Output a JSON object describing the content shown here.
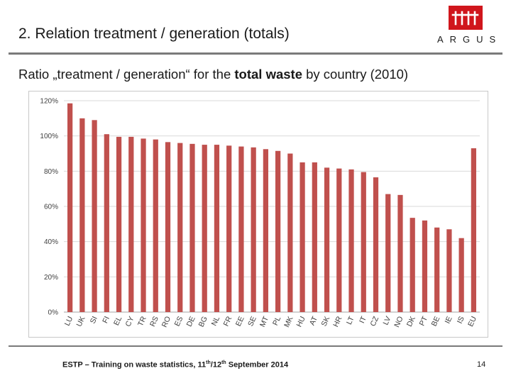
{
  "header": {
    "title": "2. Relation treatment / generation (totals)",
    "logo_text": "ARGUS",
    "brand_color": "#d0161c"
  },
  "subtitle": {
    "prefix": "Ratio „treatment / generation“ for the ",
    "emphasis": "total waste",
    "suffix": " by country (2010)"
  },
  "chart_data": {
    "type": "bar",
    "title": "",
    "xlabel": "",
    "ylabel": "",
    "ylim": [
      0,
      120
    ],
    "yticks": [
      0,
      20,
      40,
      60,
      80,
      100,
      120
    ],
    "ytick_labels": [
      "0%",
      "20%",
      "40%",
      "60%",
      "80%",
      "100%",
      "120%"
    ],
    "bar_color": "#c0504d",
    "grid": true,
    "categories": [
      "LU",
      "UK",
      "SI",
      "FI",
      "EL",
      "CY",
      "TR",
      "RS",
      "RO",
      "ES",
      "DE",
      "BG",
      "NL",
      "FR",
      "EE",
      "SE",
      "MT",
      "PL",
      "MK",
      "HU",
      "AT",
      "SK",
      "HR",
      "LT",
      "IT",
      "CZ",
      "LV",
      "NO",
      "DK",
      "PT",
      "BE",
      "IE",
      "IS",
      "EU"
    ],
    "values": [
      118.5,
      110,
      109,
      101,
      99.5,
      99.5,
      98.5,
      98,
      96.5,
      96,
      95.5,
      95,
      95,
      94.5,
      94,
      93.5,
      92.5,
      91.5,
      90,
      85,
      85,
      82,
      81.5,
      81,
      79.5,
      76.5,
      67,
      66.5,
      53.5,
      52,
      48,
      47,
      42,
      93
    ]
  },
  "footer": {
    "text_main": "ESTP – Training on waste statistics, 11",
    "sup1": "th",
    "text_mid": "/12",
    "sup2": "th",
    "text_end": " September 2014",
    "page_number": "14"
  }
}
